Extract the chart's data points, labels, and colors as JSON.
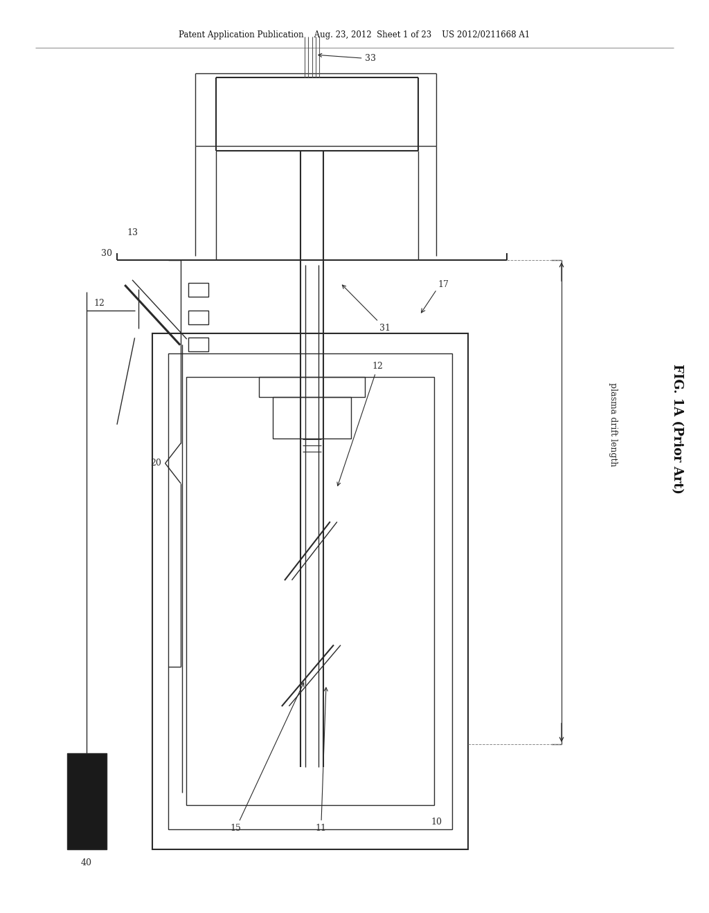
{
  "bg_color": "#ffffff",
  "header_text": "Patent Application Publication    Aug. 23, 2012  Sheet 1 of 23    US 2012/0211668 A1",
  "fig_label": "FIG. 1A (Prior Art)",
  "plasma_drift_label": "plasma drift length",
  "col": "#2a2a2a"
}
